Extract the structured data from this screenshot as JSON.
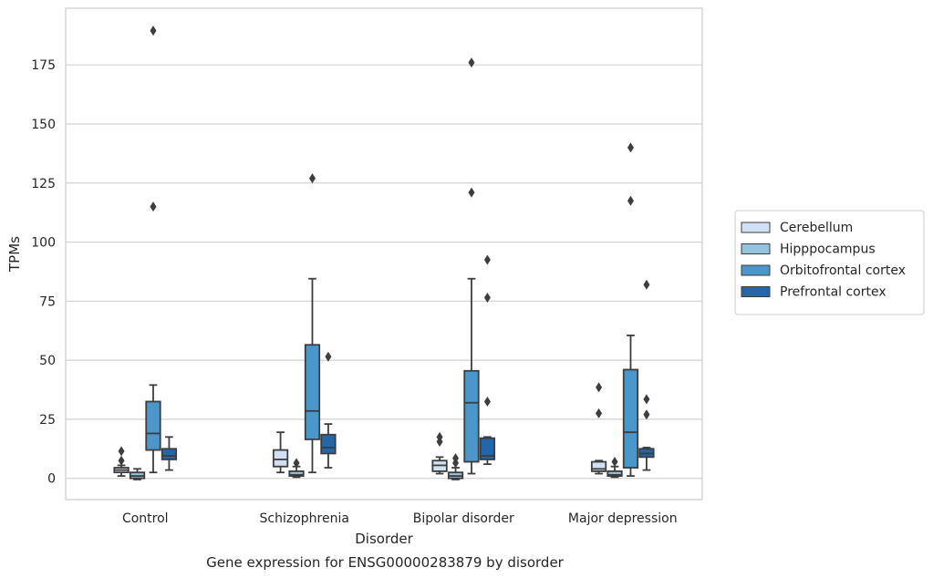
{
  "chart_data": {
    "type": "box",
    "title": "",
    "caption": "Gene expression for ENSG00000283879 by disorder",
    "xlabel": "Disorder",
    "ylabel": "TPMs",
    "ylim": [
      -9,
      199
    ],
    "yticks": [
      0,
      25,
      50,
      75,
      100,
      125,
      150,
      175
    ],
    "grid": "horizontal",
    "legend_position": "right",
    "categories": [
      "Control",
      "Schizophrenia",
      "Bipolar disorder",
      "Major depression"
    ],
    "series": [
      {
        "name": "Cerebellum",
        "color": "#cfe1f2",
        "boxes": [
          {
            "whisker_low": 1,
            "q1": 2.5,
            "median": 3.5,
            "q3": 4.5,
            "whisker_high": 5.5,
            "outliers": [
              7.5,
              11.5
            ]
          },
          {
            "whisker_low": 2.5,
            "q1": 5,
            "median": 8,
            "q3": 12,
            "whisker_high": 19.5,
            "outliers": []
          },
          {
            "whisker_low": 2,
            "q1": 3,
            "median": 5.5,
            "q3": 7.5,
            "whisker_high": 9,
            "outliers": [
              15.5,
              17.5
            ]
          },
          {
            "whisker_low": 2,
            "q1": 3,
            "median": 4,
            "q3": 7,
            "whisker_high": 7.5,
            "outliers": [
              27.5,
              38.5
            ]
          }
        ]
      },
      {
        "name": "Hipppocampus",
        "color": "#93c4de",
        "boxes": [
          {
            "whisker_low": -0.5,
            "q1": 0,
            "median": 1,
            "q3": 2.5,
            "whisker_high": 4,
            "outliers": []
          },
          {
            "whisker_low": 0.5,
            "q1": 1,
            "median": 1.5,
            "q3": 3,
            "whisker_high": 5,
            "outliers": [
              6.5
            ]
          },
          {
            "whisker_low": -0.5,
            "q1": 0,
            "median": 1,
            "q3": 2.5,
            "whisker_high": 4.5,
            "outliers": [
              6.5,
              8.5
            ]
          },
          {
            "whisker_low": 0.5,
            "q1": 1,
            "median": 1.5,
            "q3": 3,
            "whisker_high": 5,
            "outliers": [
              7
            ]
          }
        ]
      },
      {
        "name": "Orbitofrontal cortex",
        "color": "#4b97c9",
        "boxes": [
          {
            "whisker_low": 2.5,
            "q1": 12,
            "median": 19,
            "q3": 32.5,
            "whisker_high": 39.5,
            "outliers": [
              115,
              189.5
            ]
          },
          {
            "whisker_low": 2.5,
            "q1": 16.5,
            "median": 28.5,
            "q3": 56.5,
            "whisker_high": 84.5,
            "outliers": [
              127
            ]
          },
          {
            "whisker_low": 2,
            "q1": 7,
            "median": 32,
            "q3": 45.5,
            "whisker_high": 84.5,
            "outliers": [
              121,
              176
            ]
          },
          {
            "whisker_low": 1,
            "q1": 4.5,
            "median": 19.5,
            "q3": 46,
            "whisker_high": 60.5,
            "outliers": [
              117.5,
              140
            ]
          }
        ]
      },
      {
        "name": "Prefrontal cortex",
        "color": "#2366a9",
        "boxes": [
          {
            "whisker_low": 3.5,
            "q1": 8,
            "median": 9.5,
            "q3": 12.5,
            "whisker_high": 17.5,
            "outliers": []
          },
          {
            "whisker_low": 4.5,
            "q1": 10.5,
            "median": 13,
            "q3": 18.5,
            "whisker_high": 23,
            "outliers": [
              51.5
            ]
          },
          {
            "whisker_low": 6,
            "q1": 8,
            "median": 9.5,
            "q3": 17,
            "whisker_high": 17.5,
            "outliers": [
              32.5,
              76.5,
              92.5
            ]
          },
          {
            "whisker_low": 3.5,
            "q1": 9,
            "median": 10.5,
            "q3": 12.5,
            "whisker_high": 13,
            "outliers": [
              27,
              33.5,
              82
            ]
          }
        ]
      }
    ]
  }
}
